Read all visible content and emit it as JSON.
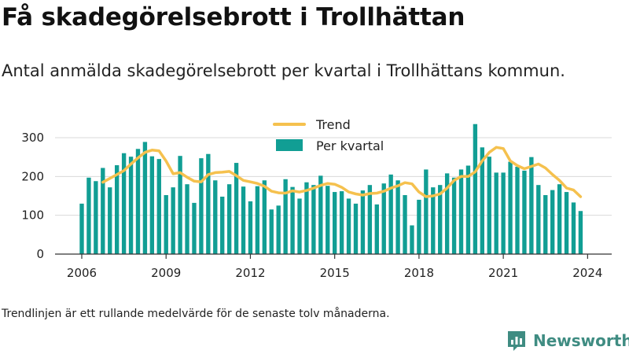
{
  "title": "Få skadegörelsebrott i Trollhättan",
  "subtitle": "Antal anmälda skadegörelsebrott per kvartal i Trollhättans kommun.",
  "note": "Trendlinjen är ett rullande medelvärde för de senaste tolv månaderna.",
  "brand": {
    "name": "Newsworthy",
    "icon": "newsworthy-logo-icon"
  },
  "colors": {
    "bars": "#119e94",
    "trend": "#f5c14e",
    "grid": "#d9d9d9",
    "axis": "#333333",
    "brand": "#3f8c82"
  },
  "chart_data": {
    "type": "bar",
    "x_start": 2006,
    "periods_per_year": 4,
    "xticks": [
      "2006",
      "2009",
      "2012",
      "2015",
      "2018",
      "2021",
      "2024"
    ],
    "yticks": [
      "0",
      "100",
      "200",
      "300"
    ],
    "ylim": [
      0,
      350
    ],
    "legend_position": "top",
    "grid": true,
    "series": [
      {
        "name": "Per kvartal",
        "type": "bar",
        "values": [
          130,
          197,
          188,
          222,
          172,
          229,
          260,
          251,
          271,
          289,
          252,
          245,
          152,
          172,
          253,
          180,
          132,
          247,
          258,
          190,
          148,
          180,
          235,
          174,
          136,
          175,
          190,
          115,
          125,
          193,
          173,
          143,
          185,
          178,
          202,
          176,
          160,
          162,
          143,
          130,
          164,
          178,
          128,
          182,
          205,
          190,
          152,
          74,
          140,
          218,
          172,
          178,
          208,
          197,
          218,
          228,
          335,
          275,
          251,
          210,
          210,
          238,
          225,
          215,
          250,
          178,
          152,
          165,
          180,
          160,
          133,
          111
        ]
      },
      {
        "name": "Trend",
        "type": "line",
        "values": [
          null,
          null,
          null,
          185,
          195,
          205,
          215,
          232,
          248,
          262,
          268,
          266,
          240,
          207,
          210,
          198,
          188,
          186,
          205,
          210,
          211,
          213,
          202,
          190,
          186,
          182,
          175,
          162,
          158,
          157,
          163,
          160,
          164,
          170,
          177,
          182,
          180,
          172,
          160,
          155,
          152,
          156,
          157,
          162,
          170,
          176,
          184,
          181,
          160,
          148,
          150,
          155,
          170,
          190,
          200,
          200,
          212,
          240,
          262,
          275,
          272,
          240,
          228,
          220,
          226,
          232,
          222,
          205,
          190,
          170,
          165,
          148
        ]
      }
    ]
  }
}
